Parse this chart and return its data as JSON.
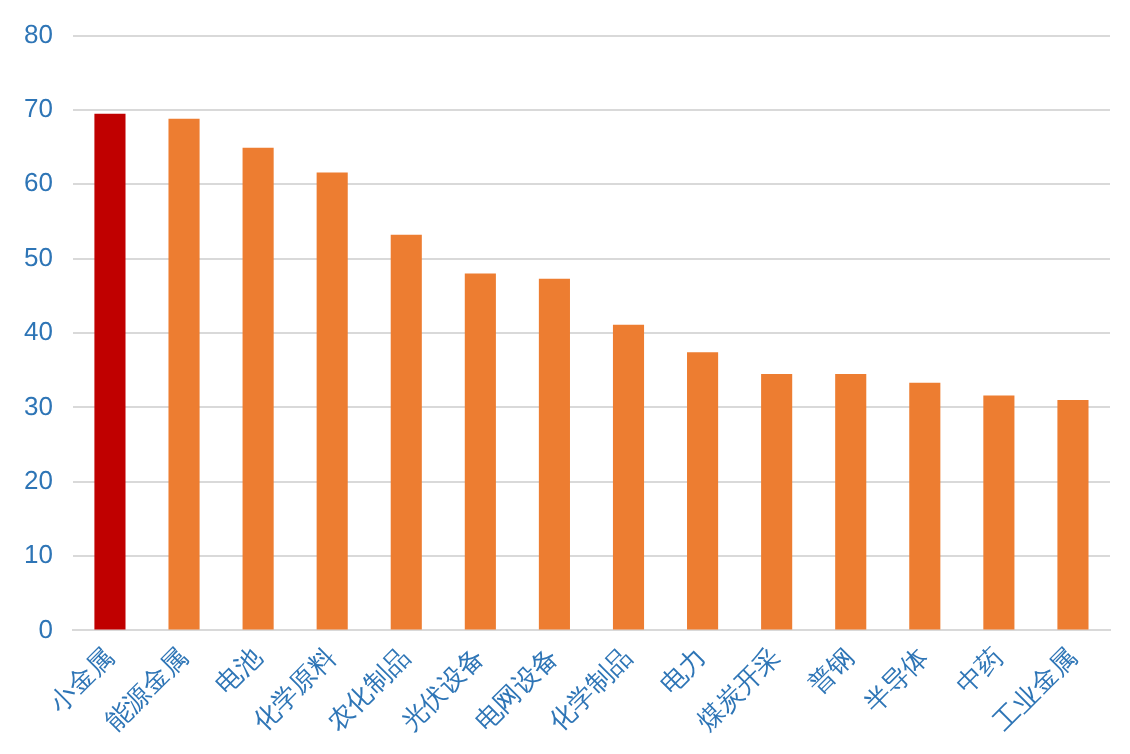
{
  "chart_data": {
    "type": "bar",
    "categories": [
      "小金属",
      "能源金属",
      "电池",
      "化学原料",
      "农化制品",
      "光伏设备",
      "电网设备",
      "化学制品",
      "电力",
      "煤炭开采",
      "普钢",
      "半导体",
      "中药",
      "工业金属"
    ],
    "values": [
      69.5,
      68.8,
      64.9,
      61.6,
      53.2,
      48.0,
      47.3,
      41.1,
      37.4,
      34.5,
      34.5,
      33.3,
      31.6,
      31.0
    ],
    "colors": [
      "#c00000",
      "#ed7d31",
      "#ed7d31",
      "#ed7d31",
      "#ed7d31",
      "#ed7d31",
      "#ed7d31",
      "#ed7d31",
      "#ed7d31",
      "#ed7d31",
      "#ed7d31",
      "#ed7d31",
      "#ed7d31",
      "#ed7d31"
    ],
    "ylim": [
      0,
      80
    ],
    "yticks": [
      0,
      10,
      20,
      30,
      40,
      50,
      60,
      70,
      80
    ],
    "grid": "y",
    "legend": false
  }
}
